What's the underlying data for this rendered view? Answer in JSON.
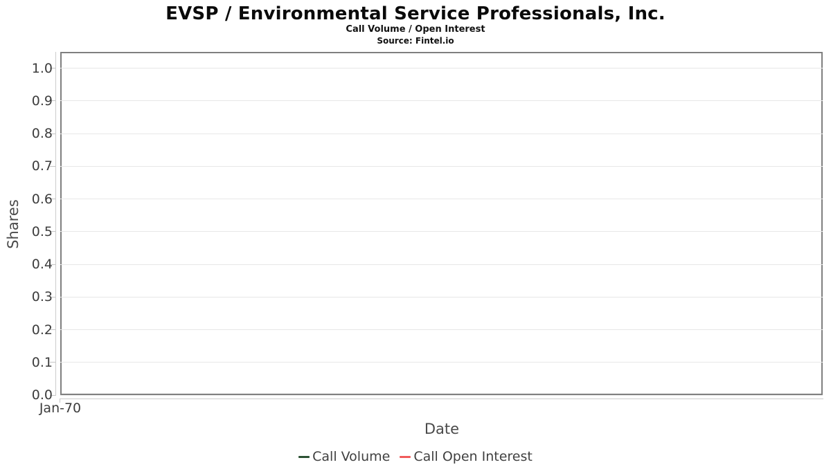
{
  "chart_data": {
    "type": "line",
    "title": "EVSP / Environmental Service Professionals, Inc.",
    "subtitle": "Call Volume / Open Interest",
    "source": "Source: Fintel.io",
    "xlabel": "Date",
    "ylabel": "Shares",
    "x_tick_labels": [
      "Jan-70"
    ],
    "y_tick_labels": [
      "0.0",
      "0.1",
      "0.2",
      "0.3",
      "0.4",
      "0.5",
      "0.6",
      "0.7",
      "0.8",
      "0.9",
      "1.0"
    ],
    "ylim": [
      0,
      1.05
    ],
    "grid": "horizontal",
    "legend_position": "bottom",
    "series": [
      {
        "name": "Call Volume",
        "color": "#2c5234",
        "x": [],
        "values": []
      },
      {
        "name": "Call Open Interest",
        "color": "#f05b5b",
        "x": [],
        "values": []
      }
    ]
  },
  "style_colors": {
    "plot_border": "#7f7f7f",
    "gridline": "#e7e7e7",
    "axis_line": "#cccccc",
    "tick_label": "#3c3c3c",
    "axis_title": "#4a4a4a"
  }
}
